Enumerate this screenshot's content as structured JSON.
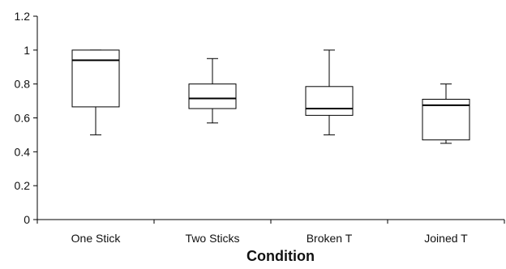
{
  "chart_data": {
    "type": "box",
    "title": "",
    "xlabel": "Condition",
    "ylabel": "",
    "ylim": [
      0,
      1.2
    ],
    "yticks": [
      0,
      0.2,
      0.4,
      0.6,
      0.8,
      1,
      1.2
    ],
    "ytick_labels": [
      "0",
      "0.2",
      "0.4",
      "0.6",
      "0.8",
      "1",
      "1.2"
    ],
    "grid": false,
    "legend": "none",
    "categories": [
      "One Stick",
      "Two Sticks",
      "Broken T",
      "Joined T"
    ],
    "boxes": [
      {
        "min": 0.5,
        "q1": 0.665,
        "median": 0.94,
        "q3": 1.0,
        "max": 1.0
      },
      {
        "min": 0.57,
        "q1": 0.655,
        "median": 0.715,
        "q3": 0.8,
        "max": 0.95
      },
      {
        "min": 0.5,
        "q1": 0.615,
        "median": 0.655,
        "q3": 0.785,
        "max": 1.0
      },
      {
        "min": 0.45,
        "q1": 0.47,
        "median": 0.675,
        "q3": 0.71,
        "max": 0.8
      }
    ],
    "colors": {
      "stroke": "#000000",
      "box_fill": "#ffffff"
    }
  }
}
